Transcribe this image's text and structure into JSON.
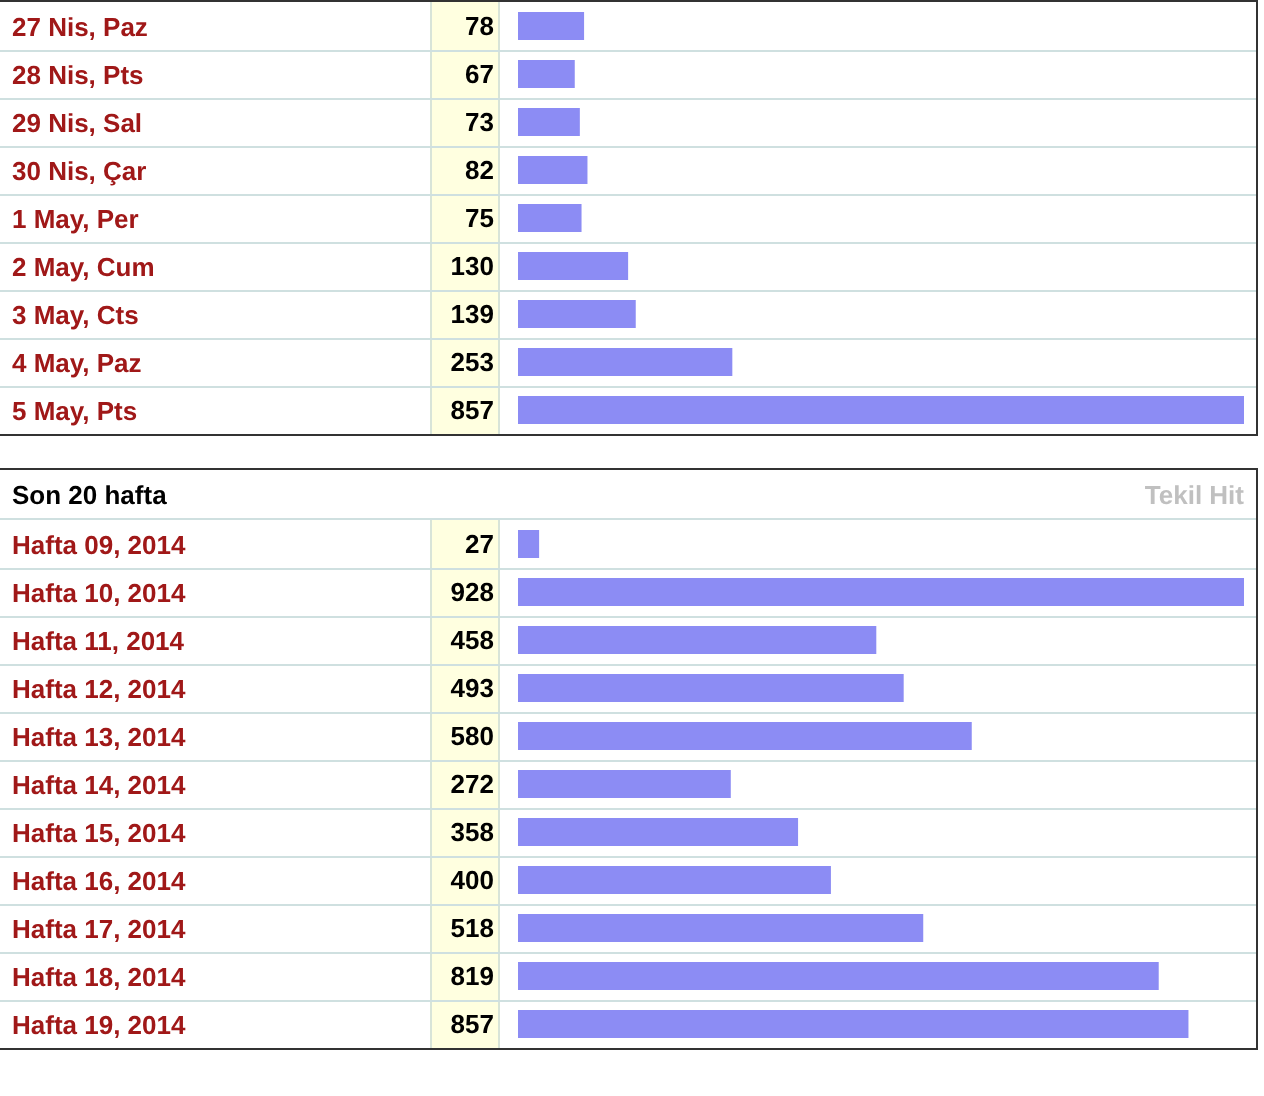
{
  "chart_data": [
    {
      "type": "bar",
      "orientation": "horizontal",
      "categories": [
        "27 Nis, Paz",
        "28 Nis, Pts",
        "29 Nis, Sal",
        "30 Nis, Çar",
        "1 May, Per",
        "2 May, Cum",
        "3 May, Cts",
        "4 May, Paz",
        "5 May, Pts"
      ],
      "values": [
        78,
        67,
        73,
        82,
        75,
        130,
        139,
        253,
        857
      ],
      "color": "#8c8cf4",
      "data_labels": true,
      "tick_labels": "y"
    },
    {
      "type": "bar",
      "orientation": "horizontal",
      "title": "Son 20 hafta",
      "annotations": [
        "Tekil Hit"
      ],
      "categories": [
        "Hafta 09, 2014",
        "Hafta 10, 2014",
        "Hafta 11, 2014",
        "Hafta 12, 2014",
        "Hafta 13, 2014",
        "Hafta 14, 2014",
        "Hafta 15, 2014",
        "Hafta 16, 2014",
        "Hafta 17, 2014",
        "Hafta 18, 2014",
        "Hafta 19, 2014"
      ],
      "values": [
        27,
        928,
        458,
        493,
        580,
        272,
        358,
        400,
        518,
        819,
        857
      ],
      "color": "#8c8cf4",
      "data_labels": true,
      "tick_labels": "y"
    }
  ]
}
